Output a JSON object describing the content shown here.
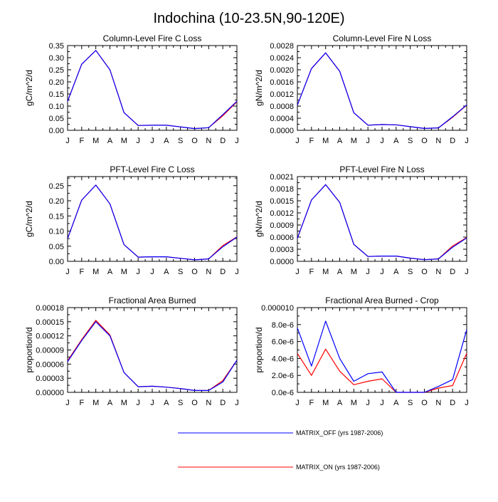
{
  "title": "Indochina (10-23.5N,90-120E)",
  "colors": {
    "matrix_off": "#0000ff",
    "matrix_on": "#ff0000",
    "axis": "#000000"
  },
  "months": [
    "J",
    "F",
    "M",
    "A",
    "M",
    "J",
    "J",
    "A",
    "S",
    "O",
    "N",
    "D",
    "J"
  ],
  "legend": {
    "off_label": "MATRIX_OFF (yrs 1987-2006)",
    "on_label": "MATRIX_ON (yrs 1987-2006)"
  },
  "chart_data": [
    {
      "type": "line",
      "title": "Column-Level Fire C Loss",
      "ylabel": "gC/m^2/d",
      "ylim": [
        0,
        0.35
      ],
      "yticks": [
        "0.00",
        "0.05",
        "0.10",
        "0.15",
        "0.20",
        "0.25",
        "0.30",
        "0.35"
      ],
      "x": [
        "J",
        "F",
        "M",
        "A",
        "M",
        "J",
        "J",
        "A",
        "S",
        "O",
        "N",
        "D",
        "J"
      ],
      "series": [
        {
          "name": "MATRIX_OFF (yrs 1987-2006)",
          "values": [
            0.12,
            0.273,
            0.33,
            0.25,
            0.073,
            0.02,
            0.021,
            0.021,
            0.014,
            0.007,
            0.011,
            0.065,
            0.12
          ]
        },
        {
          "name": "MATRIX_ON (yrs 1987-2006)",
          "values": [
            0.12,
            0.273,
            0.33,
            0.25,
            0.073,
            0.02,
            0.021,
            0.021,
            0.014,
            0.007,
            0.011,
            0.06,
            0.118
          ]
        }
      ]
    },
    {
      "type": "line",
      "title": "Column-Level Fire N Loss",
      "ylabel": "gN/m^2/d",
      "ylim": [
        0,
        0.0028
      ],
      "yticks": [
        "0.0000",
        "0.0004",
        "0.0008",
        "0.0012",
        "0.0016",
        "0.0020",
        "0.0024",
        "0.0028"
      ],
      "x": [
        "J",
        "F",
        "M",
        "A",
        "M",
        "J",
        "J",
        "A",
        "S",
        "O",
        "N",
        "D",
        "J"
      ],
      "series": [
        {
          "name": "MATRIX_OFF (yrs 1987-2006)",
          "values": [
            0.00083,
            0.00204,
            0.00256,
            0.00195,
            0.00058,
            0.00017,
            0.00019,
            0.00018,
            0.00012,
            6e-05,
            8e-05,
            0.00045,
            0.00084
          ]
        },
        {
          "name": "MATRIX_ON (yrs 1987-2006)",
          "values": [
            0.00083,
            0.00204,
            0.00256,
            0.00195,
            0.00058,
            0.00017,
            0.00019,
            0.00018,
            0.00012,
            6e-05,
            8e-05,
            0.00043,
            0.00083
          ]
        }
      ]
    },
    {
      "type": "line",
      "title": "PFT-Level Fire C Loss",
      "ylabel": "gC/m^2/d",
      "ylim": [
        0,
        0.28
      ],
      "yticks": [
        "0.00",
        "0.05",
        "0.10",
        "0.15",
        "0.20",
        "0.25"
      ],
      "x": [
        "J",
        "F",
        "M",
        "A",
        "M",
        "J",
        "J",
        "A",
        "S",
        "O",
        "N",
        "D",
        "J"
      ],
      "series": [
        {
          "name": "MATRIX_OFF (yrs 1987-2006)",
          "values": [
            0.075,
            0.202,
            0.252,
            0.19,
            0.055,
            0.014,
            0.015,
            0.015,
            0.01,
            0.005,
            0.008,
            0.048,
            0.08
          ]
        },
        {
          "name": "MATRIX_ON (yrs 1987-2006)",
          "values": [
            0.075,
            0.202,
            0.252,
            0.19,
            0.055,
            0.014,
            0.015,
            0.015,
            0.01,
            0.005,
            0.008,
            0.052,
            0.081
          ]
        }
      ]
    },
    {
      "type": "line",
      "title": "PFT-Level Fire N Loss",
      "ylabel": "gN/m^2/d",
      "ylim": [
        0,
        0.0021
      ],
      "yticks": [
        "0.0000",
        "0.0003",
        "0.0006",
        "0.0009",
        "0.0012",
        "0.0015",
        "0.0018",
        "0.0021"
      ],
      "x": [
        "J",
        "F",
        "M",
        "A",
        "M",
        "J",
        "J",
        "A",
        "S",
        "O",
        "N",
        "D",
        "J"
      ],
      "series": [
        {
          "name": "MATRIX_OFF (yrs 1987-2006)",
          "values": [
            0.00057,
            0.00152,
            0.0019,
            0.00146,
            0.00042,
            0.00012,
            0.00013,
            0.00013,
            8e-05,
            4e-05,
            6e-05,
            0.00035,
            0.00058
          ]
        },
        {
          "name": "MATRIX_ON (yrs 1987-2006)",
          "values": [
            0.00057,
            0.00152,
            0.0019,
            0.00146,
            0.00042,
            0.00012,
            0.00013,
            0.00013,
            8e-05,
            4e-05,
            6e-05,
            0.00038,
            0.00059
          ]
        }
      ]
    },
    {
      "type": "line",
      "title": "Fractional Area Burned",
      "ylabel": "proportion/d",
      "ylim": [
        0,
        0.00018
      ],
      "yticks": [
        "0.00000",
        "0.00003",
        "0.00006",
        "0.00009",
        "0.00012",
        "0.00015",
        "0.00018"
      ],
      "x": [
        "J",
        "F",
        "M",
        "A",
        "M",
        "J",
        "J",
        "A",
        "S",
        "O",
        "N",
        "D",
        "J"
      ],
      "series": [
        {
          "name": "MATRIX_OFF (yrs 1987-2006)",
          "values": [
            6.5e-05,
            0.00011,
            0.00015,
            0.00012,
            4.2e-05,
            1.2e-05,
            1.3e-05,
            1.1e-05,
            8e-06,
            4e-06,
            4e-06,
            2.2e-05,
            6.8e-05
          ]
        },
        {
          "name": "MATRIX_ON (yrs 1987-2006)",
          "values": [
            6.7e-05,
            0.000112,
            0.000153,
            0.000122,
            4.2e-05,
            1.2e-05,
            1.3e-05,
            1.1e-05,
            8e-06,
            4e-06,
            4e-06,
            2.5e-05,
            6.8e-05
          ]
        }
      ]
    },
    {
      "type": "line",
      "title": "Fractional Area Burned - Crop",
      "ylabel": "proportion/d",
      "ylim": [
        0,
        1e-05
      ],
      "yticks": [
        "0.0e-6",
        "2.0e-6",
        "4.0e-6",
        "6.0e-6",
        "8.0e-6",
        "0.000010"
      ],
      "x": [
        "J",
        "F",
        "M",
        "A",
        "M",
        "J",
        "J",
        "A",
        "S",
        "O",
        "N",
        "D",
        "J"
      ],
      "series": [
        {
          "name": "MATRIX_OFF (yrs 1987-2006)",
          "values": [
            7.6e-06,
            3.1e-06,
            8.4e-06,
            4e-06,
            1.3e-06,
            2.2e-06,
            2.4e-06,
            0,
            0,
            0,
            7e-07,
            1.5e-06,
            7.4e-06
          ]
        },
        {
          "name": "MATRIX_ON (yrs 1987-2006)",
          "values": [
            4.6e-06,
            2e-06,
            5.1e-06,
            2.5e-06,
            9e-07,
            1.3e-06,
            1.6e-06,
            0,
            0,
            0,
            5e-07,
            8e-07,
            4.6e-06
          ]
        }
      ]
    }
  ]
}
